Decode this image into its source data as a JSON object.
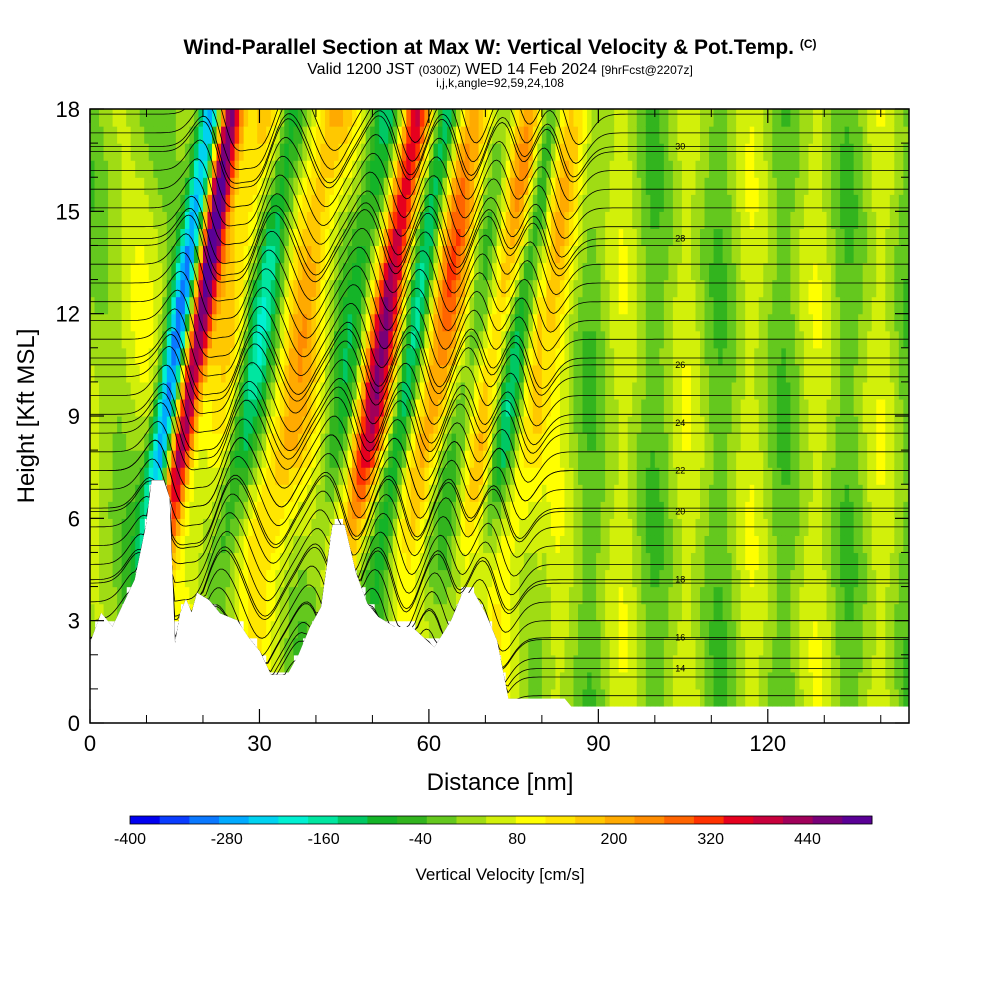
{
  "header": {
    "title": "Wind-Parallel Section at Max W: Vertical Velocity & Pot.Temp.",
    "title_mark": "(C)",
    "subtitle_a": "Valid 1200 JST",
    "subtitle_b": "(0300Z)",
    "subtitle_c": "WED 14 Feb 2024",
    "subtitle_d": "[9hrFcst@2207z]",
    "params": "i,j,k,angle=92,59,24,108"
  },
  "chart_data": {
    "type": "heatmap",
    "xlabel": "Distance [nm]",
    "ylabel": "Height [Kft MSL]",
    "xlim": [
      0,
      145
    ],
    "ylim": [
      0,
      18
    ],
    "x_ticks": [
      "0",
      "30",
      "60",
      "90",
      "120"
    ],
    "y_ticks": [
      "0",
      "3",
      "6",
      "9",
      "12",
      "15",
      "18"
    ],
    "x_tick_values": [
      0,
      30,
      60,
      90,
      120
    ],
    "y_tick_values": [
      0,
      3,
      6,
      9,
      12,
      15,
      18
    ],
    "colorbar": {
      "title": "Vertical Velocity [cm/s]",
      "labels": [
        "-400",
        "-280",
        "-160",
        "-40",
        "80",
        "200",
        "320",
        "440"
      ],
      "label_values": [
        -400,
        -280,
        -160,
        -40,
        80,
        200,
        320,
        440
      ],
      "range": [
        -400,
        520
      ],
      "colors": [
        "#0000f0",
        "#0a3cff",
        "#0a78ff",
        "#00aaff",
        "#00d2f0",
        "#00f0d2",
        "#00e6a0",
        "#00c864",
        "#14b428",
        "#32b41e",
        "#64c81e",
        "#a0dc14",
        "#d2f00a",
        "#ffff00",
        "#ffe600",
        "#ffc800",
        "#ffaa00",
        "#ff8c00",
        "#ff6400",
        "#ff3200",
        "#e6001e",
        "#c8003c",
        "#a0005a",
        "#780078",
        "#5a0096"
      ]
    },
    "w_features": [
      {
        "x": 11.8,
        "sign": -1,
        "peak": -380,
        "width": 1.6
      },
      {
        "x": 15.0,
        "sign": 1,
        "peak": 480,
        "width": 1.6
      },
      {
        "x": 21.0,
        "sign": 1,
        "peak": 120,
        "width": 2.6
      },
      {
        "x": 26.0,
        "sign": -1,
        "peak": -180,
        "width": 2.0
      },
      {
        "x": 33.5,
        "sign": 1,
        "peak": 180,
        "width": 2.8
      },
      {
        "x": 42.5,
        "sign": -1,
        "peak": -120,
        "width": 2.0
      },
      {
        "x": 48.0,
        "sign": 1,
        "peak": 380,
        "width": 1.9
      },
      {
        "x": 53.5,
        "sign": -1,
        "peak": -200,
        "width": 1.6
      },
      {
        "x": 58.5,
        "sign": 1,
        "peak": 220,
        "width": 2.4
      },
      {
        "x": 64.5,
        "sign": -1,
        "peak": -110,
        "width": 2.3
      },
      {
        "x": 68.0,
        "sign": 1,
        "peak": 200,
        "width": 2.2
      },
      {
        "x": 72.0,
        "sign": -1,
        "peak": -190,
        "width": 1.7
      },
      {
        "x": 76.0,
        "sign": 1,
        "peak": 140,
        "width": 2.6
      }
    ],
    "terrain": [
      [
        0,
        2.3
      ],
      [
        2,
        3.2
      ],
      [
        4,
        2.8
      ],
      [
        6,
        3.5
      ],
      [
        8,
        4.2
      ],
      [
        10,
        5.8
      ],
      [
        11,
        7.1
      ],
      [
        13,
        7.1
      ],
      [
        14,
        6.6
      ],
      [
        15,
        2.2
      ],
      [
        16,
        3.2
      ],
      [
        17,
        3.6
      ],
      [
        18,
        3.2
      ],
      [
        19,
        3.8
      ],
      [
        21,
        3.6
      ],
      [
        23,
        3.2
      ],
      [
        26,
        3.0
      ],
      [
        28,
        2.5
      ],
      [
        30,
        2.1
      ],
      [
        32,
        1.4
      ],
      [
        35,
        1.4
      ],
      [
        37,
        2.0
      ],
      [
        39,
        2.8
      ],
      [
        41,
        3.4
      ],
      [
        43,
        5.8
      ],
      [
        45,
        5.8
      ],
      [
        47,
        4.4
      ],
      [
        49,
        3.5
      ],
      [
        51,
        3.1
      ],
      [
        54,
        2.8
      ],
      [
        57,
        2.8
      ],
      [
        59,
        2.5
      ],
      [
        61,
        2.2
      ],
      [
        64,
        3.0
      ],
      [
        66,
        3.8
      ],
      [
        68,
        3.8
      ],
      [
        70,
        3.2
      ],
      [
        72,
        2.4
      ],
      [
        74,
        0.7
      ],
      [
        76,
        0.7
      ],
      [
        84,
        0.7
      ],
      [
        86,
        0.3
      ],
      [
        145,
        0.3
      ]
    ],
    "theta_contours": [
      {
        "label": "30",
        "base": 16.9
      },
      {
        "label": "28",
        "base": 14.2
      },
      {
        "label": "26",
        "base": 10.5
      },
      {
        "label": "24",
        "base": 8.8
      },
      {
        "label": "22",
        "base": 7.4
      },
      {
        "label": "20",
        "base": 6.2
      },
      {
        "label": "18",
        "base": 4.2
      },
      {
        "label": "16",
        "base": 2.5
      },
      {
        "label": "14",
        "base": 1.6
      }
    ]
  }
}
